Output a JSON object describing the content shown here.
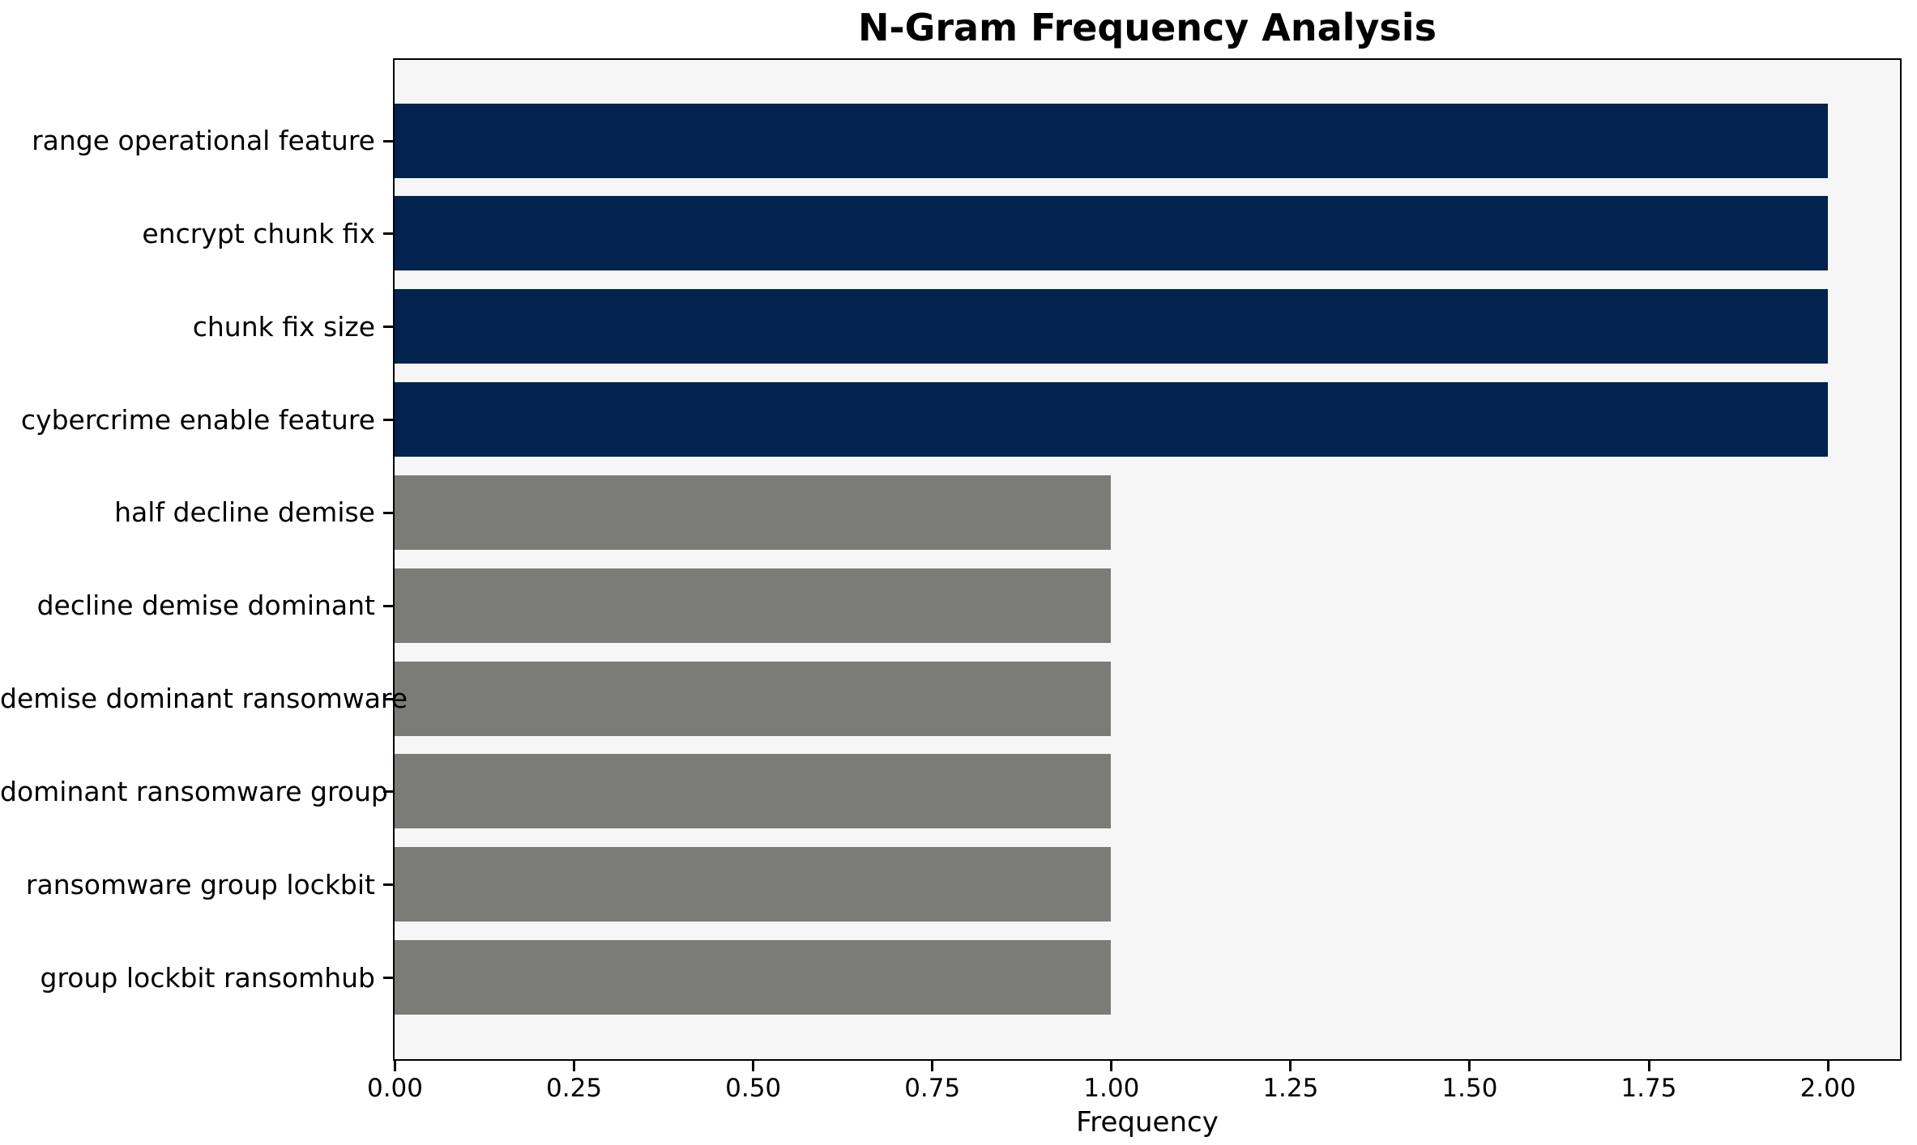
{
  "chart_data": {
    "type": "bar",
    "orientation": "horizontal",
    "title": "N-Gram Frequency Analysis",
    "xlabel": "Frequency",
    "ylabel": "",
    "categories": [
      "range operational feature",
      "encrypt chunk fix",
      "chunk fix size",
      "cybercrime enable feature",
      "half decline demise",
      "decline demise dominant",
      "demise dominant ransomware",
      "dominant ransomware group",
      "ransomware group lockbit",
      "group lockbit ransomhub"
    ],
    "values": [
      2,
      2,
      2,
      2,
      1,
      1,
      1,
      1,
      1,
      1
    ],
    "bar_colors": [
      "#02234d",
      "#02234d",
      "#02234d",
      "#02234d",
      "#7b7b77",
      "#7b7b77",
      "#7b7b77",
      "#7b7b77",
      "#7b7b77",
      "#7b7b77"
    ],
    "colors": {
      "highlight": "#02234d",
      "default": "#7b7b77",
      "plot_background": "#f6f6f7",
      "spine": "#000000"
    },
    "xlim": [
      0,
      2.1
    ],
    "xticks": [
      {
        "value": 0.0,
        "label": "0.00"
      },
      {
        "value": 0.25,
        "label": "0.25"
      },
      {
        "value": 0.5,
        "label": "0.50"
      },
      {
        "value": 0.75,
        "label": "0.75"
      },
      {
        "value": 1.0,
        "label": "1.00"
      },
      {
        "value": 1.25,
        "label": "1.25"
      },
      {
        "value": 1.5,
        "label": "1.50"
      },
      {
        "value": 1.75,
        "label": "1.75"
      },
      {
        "value": 2.0,
        "label": "2.00"
      }
    ],
    "grid": false,
    "legend": null
  }
}
